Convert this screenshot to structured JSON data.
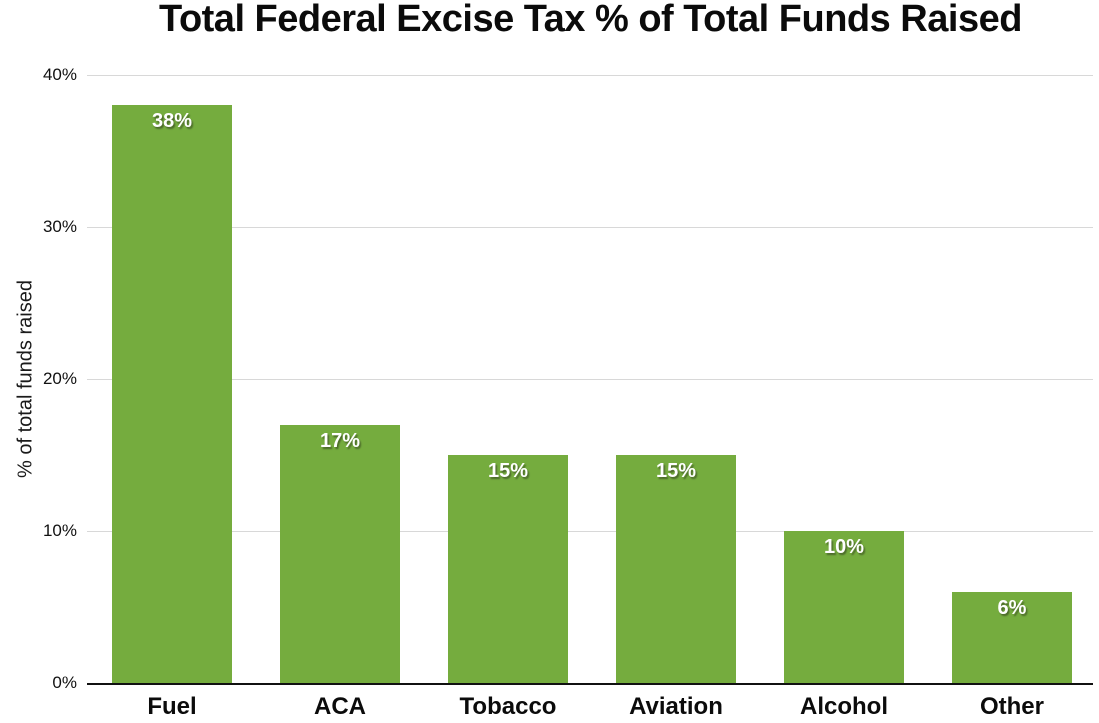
{
  "title": "Total Federal Excise Tax % of Total Funds Raised",
  "colors": {
    "bar": "#75ac3e",
    "gridline": "#d8d8d8",
    "axis": "#111111",
    "bar_label_text": "#ffffff",
    "title_text": "#0b0b0b"
  },
  "chart_data": {
    "type": "bar",
    "title": "Total Federal Excise Tax % of Total Funds Raised",
    "xlabel": "",
    "ylabel": "% of total funds raised",
    "categories": [
      "Fuel",
      "ACA",
      "Tobacco",
      "Aviation",
      "Alcohol",
      "Other"
    ],
    "values": [
      38,
      17,
      15,
      15,
      10,
      6
    ],
    "bar_labels": [
      "38%",
      "17%",
      "15%",
      "15%",
      "10%",
      "6%"
    ],
    "ylim": [
      0,
      40
    ],
    "yticks": [
      {
        "value": 0,
        "label": "0%"
      },
      {
        "value": 10,
        "label": "10%"
      },
      {
        "value": 20,
        "label": "20%"
      },
      {
        "value": 30,
        "label": "30%"
      },
      {
        "value": 40,
        "label": "40%"
      }
    ],
    "grid": true,
    "legend": false,
    "bar_label_position": "inside-top"
  }
}
